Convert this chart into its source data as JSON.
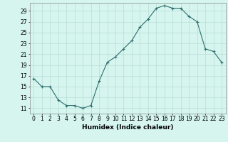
{
  "x": [
    0,
    1,
    2,
    3,
    4,
    5,
    6,
    7,
    8,
    9,
    10,
    11,
    12,
    13,
    14,
    15,
    16,
    17,
    18,
    19,
    20,
    21,
    22,
    23
  ],
  "y": [
    16.5,
    15.0,
    15.0,
    12.5,
    11.5,
    11.5,
    11.0,
    11.5,
    16.0,
    19.5,
    20.5,
    22.0,
    23.5,
    26.0,
    27.5,
    29.5,
    30.0,
    29.5,
    29.5,
    28.0,
    27.0,
    22.0,
    21.5,
    19.5
  ],
  "line_color": "#2e6e6e",
  "marker": "+",
  "marker_size": 3,
  "line_width": 0.8,
  "xlabel": "Humidex (Indice chaleur)",
  "xlim": [
    -0.5,
    23.5
  ],
  "ylim": [
    10.0,
    30.5
  ],
  "yticks": [
    11,
    13,
    15,
    17,
    19,
    21,
    23,
    25,
    27,
    29
  ],
  "xticks": [
    0,
    1,
    2,
    3,
    4,
    5,
    6,
    7,
    8,
    9,
    10,
    11,
    12,
    13,
    14,
    15,
    16,
    17,
    18,
    19,
    20,
    21,
    22,
    23
  ],
  "bg_color": "#d5f5ee",
  "grid_color": "#b8ddd6",
  "tick_fontsize": 5.5,
  "label_fontsize": 6.5
}
